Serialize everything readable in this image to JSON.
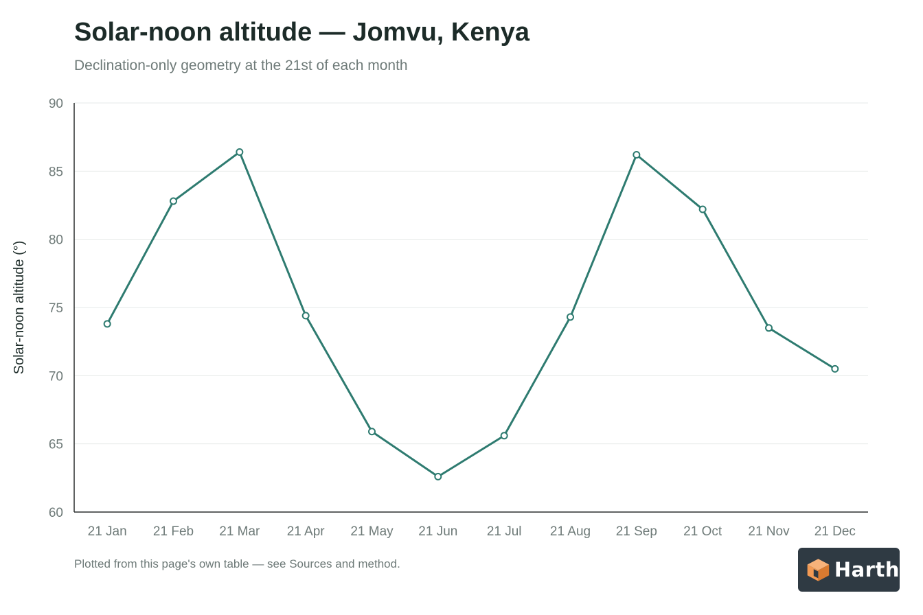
{
  "header": {
    "title": "Solar-noon altitude — Jomvu, Kenya",
    "subtitle": "Declination-only geometry at the 21st of each month"
  },
  "footer": {
    "note": "Plotted from this page's own table — see Sources and method."
  },
  "logo": {
    "text": "Harth"
  },
  "colors": {
    "line": "#2e7b70",
    "grid": "#e6e9e8",
    "axis": "#2b2f2e",
    "tick_text": "#6e7a78",
    "axis_label": "#1c2b28",
    "logo_bg": "#2f3a43",
    "logo_orange": "#f29a54"
  },
  "chart_data": {
    "type": "line",
    "title": "Solar-noon altitude — Jomvu, Kenya",
    "subtitle": "Declination-only geometry at the 21st of each month",
    "xlabel": "",
    "ylabel": "Solar-noon altitude (°)",
    "categories": [
      "21 Jan",
      "21 Feb",
      "21 Mar",
      "21 Apr",
      "21 May",
      "21 Jun",
      "21 Jul",
      "21 Aug",
      "21 Sep",
      "21 Oct",
      "21 Nov",
      "21 Dec"
    ],
    "series": [
      {
        "values": [
          73.8,
          82.8,
          86.4,
          74.4,
          65.9,
          62.6,
          65.6,
          74.3,
          86.2,
          82.2,
          73.5,
          70.5
        ]
      }
    ],
    "ylim": [
      60,
      90
    ],
    "yticks": [
      60,
      65,
      70,
      75,
      80,
      85,
      90
    ],
    "grid": true,
    "legend": "none",
    "markers": "hollow-circle"
  }
}
